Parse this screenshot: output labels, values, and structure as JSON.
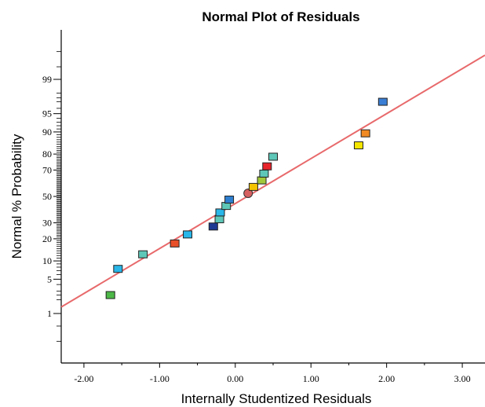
{
  "chart_data": {
    "type": "scatter",
    "title": "Normal Plot of Residuals",
    "xlabel": "Internally Studentized Residuals",
    "ylabel": "Normal % Probability",
    "xlim": [
      -2.3,
      3.3
    ],
    "x_ticks": [
      -2.0,
      -1.0,
      0.0,
      1.0,
      2.0,
      3.0
    ],
    "x_tick_labels": [
      "-2.00",
      "-1.00",
      "0.00",
      "1.00",
      "2.00",
      "3.00"
    ],
    "y_scale": "normal-probability",
    "y_ticks": [
      1,
      5,
      10,
      20,
      30,
      50,
      70,
      80,
      90,
      95,
      99
    ],
    "y_tick_labels": [
      "1",
      "5",
      "10",
      "20",
      "30",
      "50",
      "70",
      "80",
      "90",
      "95",
      "99"
    ],
    "grid": false,
    "legend": "none",
    "reference_line": {
      "color": "#e8696b",
      "points": [
        [
          -2.3,
          1.4
        ],
        [
          3.3,
          99.75
        ]
      ]
    },
    "points": [
      {
        "x": -1.65,
        "y": 2.5,
        "color": "#4db848",
        "shape": "square"
      },
      {
        "x": -1.55,
        "y": 7.5,
        "color": "#29b6e8",
        "shape": "square"
      },
      {
        "x": -1.22,
        "y": 12.5,
        "color": "#5ec7b8",
        "shape": "square"
      },
      {
        "x": -0.8,
        "y": 17.5,
        "color": "#e8502a",
        "shape": "square"
      },
      {
        "x": -0.63,
        "y": 22.5,
        "color": "#29b6e8",
        "shape": "square"
      },
      {
        "x": -0.29,
        "y": 27.5,
        "color": "#1f3a93",
        "shape": "square"
      },
      {
        "x": -0.21,
        "y": 32.5,
        "color": "#5ec7b8",
        "shape": "square"
      },
      {
        "x": -0.2,
        "y": 37.5,
        "color": "#29b6e8",
        "shape": "square"
      },
      {
        "x": -0.12,
        "y": 42.5,
        "color": "#5ec7b8",
        "shape": "square"
      },
      {
        "x": -0.08,
        "y": 47.5,
        "color": "#2f7fd0",
        "shape": "square"
      },
      {
        "x": 0.17,
        "y": 52.5,
        "color": "#d65f5f",
        "shape": "circle"
      },
      {
        "x": 0.24,
        "y": 57.5,
        "color": "#f5c400",
        "shape": "square"
      },
      {
        "x": 0.35,
        "y": 62.5,
        "color": "#a2c93a",
        "shape": "square"
      },
      {
        "x": 0.38,
        "y": 67.5,
        "color": "#5ec7b8",
        "shape": "square"
      },
      {
        "x": 0.42,
        "y": 72.5,
        "color": "#e8232a",
        "shape": "square"
      },
      {
        "x": 0.5,
        "y": 78.5,
        "color": "#5ec7b8",
        "shape": "square"
      },
      {
        "x": 1.63,
        "y": 84.5,
        "color": "#f5e600",
        "shape": "square"
      },
      {
        "x": 1.72,
        "y": 89.5,
        "color": "#f08a24",
        "shape": "square"
      },
      {
        "x": 1.95,
        "y": 97.0,
        "color": "#3a7fd5",
        "shape": "square"
      }
    ]
  }
}
